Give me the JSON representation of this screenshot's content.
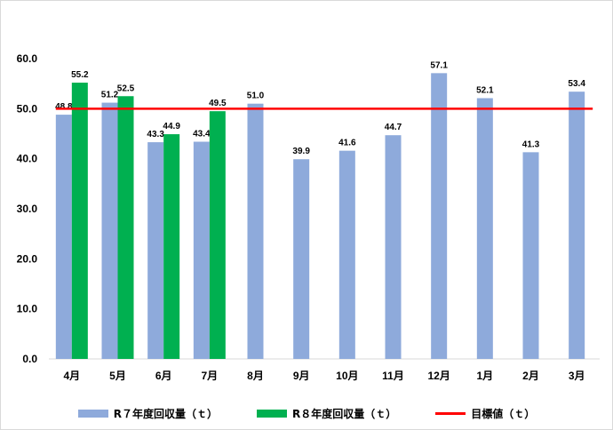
{
  "chart_data": {
    "type": "bar",
    "categories": [
      "4月",
      "5月",
      "6月",
      "7月",
      "8月",
      "9月",
      "10月",
      "11月",
      "12月",
      "1月",
      "2月",
      "3月"
    ],
    "series": [
      {
        "name": "R７年度回収量（ｔ）",
        "color": "#8eaadb",
        "values": [
          48.8,
          51.2,
          43.3,
          43.4,
          51.0,
          39.9,
          41.6,
          44.7,
          57.1,
          52.1,
          41.3,
          53.4
        ]
      },
      {
        "name": "R８年度回収量（ｔ）",
        "color": "#00b050",
        "values": [
          55.2,
          52.5,
          44.9,
          49.5,
          null,
          null,
          null,
          null,
          null,
          null,
          null,
          null
        ]
      }
    ],
    "target": {
      "name": "目標値（ｔ）",
      "value": 50.0,
      "color": "#ff0000"
    },
    "y_ticks": [
      "0.0",
      "10.0",
      "20.0",
      "30.0",
      "40.0",
      "50.0",
      "60.0"
    ],
    "ylim": [
      0,
      60
    ],
    "legend_position": "bottom",
    "grid": false
  }
}
